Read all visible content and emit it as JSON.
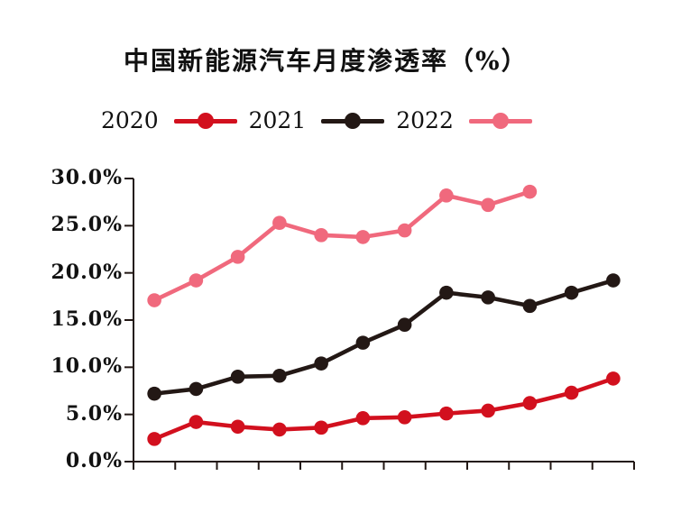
{
  "title": "中国新能源汽车月度渗透率（%）",
  "legend": {
    "items": [
      {
        "label": "2020",
        "color": "#d2101e"
      },
      {
        "label": "2021",
        "color": "#231815"
      },
      {
        "label": "2022",
        "color": "#f0697d"
      }
    ]
  },
  "axes": {
    "ytick_labels_top_to_bottom": [
      "30.0%",
      "25.0%",
      "20.0%",
      "15.0%",
      "10.0%",
      "5.0%",
      "0.0%"
    ],
    "xtick_labels": [],
    "x_tick_count": 13
  },
  "chart_data": {
    "type": "line",
    "title": "中国新能源汽车月度渗透率（%）",
    "xlabel": "",
    "ylabel": "",
    "x": [
      1,
      2,
      3,
      4,
      5,
      6,
      7,
      8,
      9,
      10,
      11,
      12
    ],
    "ylim": [
      0,
      30
    ],
    "ytick_step": 5,
    "ytick_labels": [
      "0.0%",
      "5.0%",
      "10.0%",
      "15.0%",
      "20.0%",
      "25.0%",
      "30.0%"
    ],
    "grid": false,
    "legend_position": "top",
    "series": [
      {
        "name": "2020",
        "color": "#d2101e",
        "values": [
          2.4,
          4.2,
          3.7,
          3.4,
          3.6,
          4.6,
          4.7,
          5.1,
          5.4,
          6.2,
          7.3,
          8.8
        ]
      },
      {
        "name": "2021",
        "color": "#231815",
        "values": [
          7.2,
          7.7,
          9.0,
          9.1,
          10.4,
          12.6,
          14.5,
          17.9,
          17.4,
          16.5,
          17.9,
          19.2
        ]
      },
      {
        "name": "2022",
        "color": "#f0697d",
        "values": [
          17.1,
          19.2,
          21.7,
          25.3,
          24.0,
          23.8,
          24.5,
          28.2,
          27.2,
          28.6
        ]
      }
    ]
  }
}
